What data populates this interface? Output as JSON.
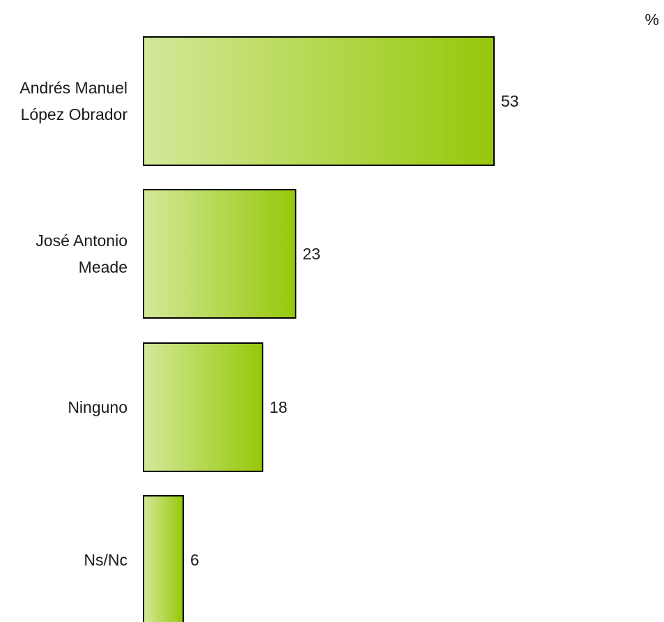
{
  "chart_data": {
    "type": "bar",
    "orientation": "horizontal",
    "categories": [
      [
        "Andrés Manuel",
        "López Obrador"
      ],
      [
        "José Antonio",
        "Meade"
      ],
      [
        "Ninguno"
      ],
      [
        "Ns/Nc"
      ]
    ],
    "values": [
      53,
      23,
      18,
      6
    ],
    "unit": "%",
    "xlim": [
      0,
      53
    ],
    "grid": false,
    "legend": "none",
    "colors": {
      "bar_light": "#d4e89a",
      "bar_dark": "#96c80a",
      "bar_border": "#000000"
    }
  }
}
